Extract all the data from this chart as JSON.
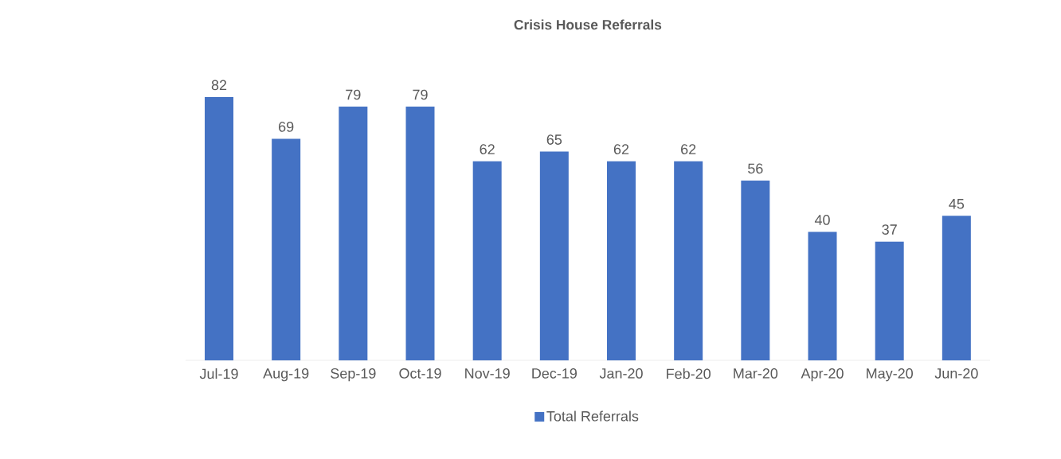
{
  "chart_data": {
    "type": "bar",
    "title": "Crisis House Referrals",
    "categories": [
      "Jul-19",
      "Aug-19",
      "Sep-19",
      "Oct-19",
      "Nov-19",
      "Dec-19",
      "Jan-20",
      "Feb-20",
      "Mar-20",
      "Apr-20",
      "May-20",
      "Jun-20"
    ],
    "series": [
      {
        "name": "Total Referrals",
        "color": "#4472c4",
        "values": [
          82,
          69,
          79,
          79,
          62,
          65,
          62,
          62,
          56,
          40,
          37,
          45
        ]
      }
    ],
    "data_labels": true,
    "legend": "bottom"
  }
}
